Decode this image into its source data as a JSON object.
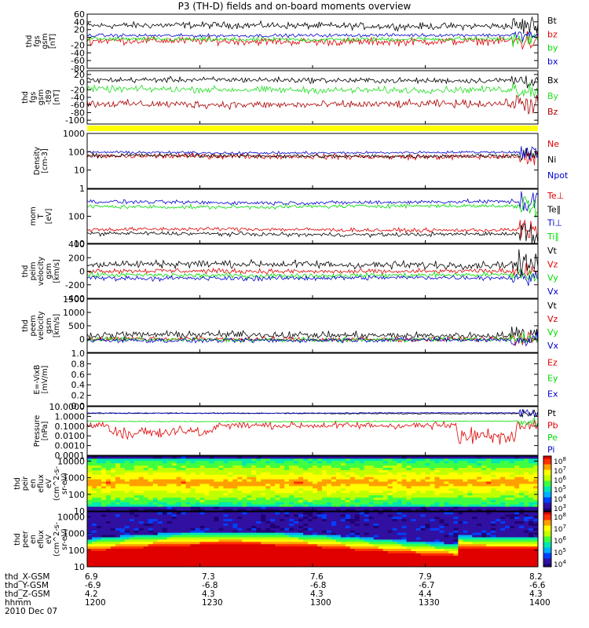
{
  "title": "P3 (TH-D) fields and on-board moments overview",
  "date": "2010 Dec 07",
  "footer": {
    "rows": [
      {
        "label": "thd_X-GSM",
        "values": [
          "6.9",
          "7.3",
          "7.6",
          "7.9",
          "8.2"
        ]
      },
      {
        "label": "thd_Y-GSM",
        "values": [
          "-6.9",
          "-6.8",
          "-6.8",
          "-6.7",
          "-6.6"
        ]
      },
      {
        "label": "thd_Z-GSM",
        "values": [
          "4.2",
          "4.3",
          "4.3",
          "4.4",
          "4.3"
        ]
      },
      {
        "label": "hhmm",
        "values": [
          "1200",
          "1230",
          "1300",
          "1330",
          "1400"
        ]
      }
    ]
  },
  "chart_data": [
    {
      "type": "line",
      "id": "fgs",
      "ylabel": [
        "thd",
        "fgs",
        "gsm",
        "[nT]"
      ],
      "ylim": [
        -80,
        60
      ],
      "log": false,
      "ticks": [
        "60",
        "40",
        "20",
        "0",
        "-20",
        "-40",
        "-60",
        "-80"
      ],
      "tick_values": [
        60,
        40,
        20,
        0,
        -20,
        -40,
        -60,
        -80
      ],
      "series": [
        {
          "name": "Bt",
          "color": "#000000",
          "level": 30,
          "noise": 6
        },
        {
          "name": "bz",
          "color": "#dd0000",
          "level": -10,
          "noise": 7
        },
        {
          "name": "by",
          "color": "#00dd00",
          "level": -5,
          "noise": 4
        },
        {
          "name": "bx",
          "color": "#0000cc",
          "level": 5,
          "noise": 3
        }
      ]
    },
    {
      "type": "line",
      "id": "t89",
      "ylabel": [
        "thd",
        "fgs",
        "gsm",
        "-t89",
        "[nT]"
      ],
      "ylim": [
        -110,
        30
      ],
      "log": false,
      "ticks": [
        "20",
        "0",
        "-20",
        "-40",
        "-60",
        "-80",
        "-100"
      ],
      "tick_values": [
        20,
        0,
        -20,
        -40,
        -60,
        -80,
        -100
      ],
      "series": [
        {
          "name": "Bx",
          "color": "#000000",
          "level": 5,
          "noise": 5
        },
        {
          "name": "By",
          "color": "#22dd22",
          "level": -20,
          "noise": 6
        },
        {
          "name": "Bz",
          "color": "#aa0000",
          "level": -58,
          "noise": 7
        }
      ]
    },
    {
      "type": "bar",
      "id": "flag",
      "color": "#ffff00"
    },
    {
      "type": "line",
      "id": "density",
      "ylabel": [
        "Density",
        "[cm-3]"
      ],
      "ylim": [
        1,
        1000
      ],
      "log": true,
      "ticks": [
        "1000",
        "100",
        "10",
        "1"
      ],
      "tick_values": [
        1000,
        100,
        10,
        1
      ],
      "series": [
        {
          "name": "Ne",
          "color": "#dd0000",
          "level": 55,
          "noise": 0.1
        },
        {
          "name": "Ni",
          "color": "#000000",
          "level": 60,
          "noise": 0.08
        },
        {
          "name": "Npot",
          "color": "#0000cc",
          "level": 90,
          "noise": 0.05
        }
      ]
    },
    {
      "type": "line",
      "id": "temp",
      "ylabel": [
        "mom",
        "T",
        "[eV]"
      ],
      "ylim": [
        10,
        1000
      ],
      "log": true,
      "ticks": [
        "100",
        "10"
      ],
      "tick_values": [
        100,
        10
      ],
      "series": [
        {
          "name": "Te⊥",
          "color": "#dd0000",
          "level": 32,
          "noise": 0.05
        },
        {
          "name": "Te∥",
          "color": "#000000",
          "level": 22,
          "noise": 0.05
        },
        {
          "name": "Ti⊥",
          "color": "#0000cc",
          "level": 330,
          "noise": 0.05
        },
        {
          "name": "Ti∥",
          "color": "#00dd00",
          "level": 230,
          "noise": 0.05
        }
      ]
    },
    {
      "type": "line",
      "id": "peiv",
      "ylabel": [
        "thd",
        "peim",
        "velocity",
        "gsm",
        "[km/s]"
      ],
      "ylim": [
        -400,
        400
      ],
      "log": false,
      "ticks": [
        "400",
        "200",
        "0",
        "-200",
        "-400"
      ],
      "tick_values": [
        400,
        200,
        0,
        -200,
        -400
      ],
      "series": [
        {
          "name": "Vt",
          "color": "#000000",
          "level": 100,
          "noise": 40
        },
        {
          "name": "Vz",
          "color": "#dd0000",
          "level": 0,
          "noise": 25
        },
        {
          "name": "Vy",
          "color": "#00dd00",
          "level": -60,
          "noise": 25
        },
        {
          "name": "Vx",
          "color": "#0000cc",
          "level": -100,
          "noise": 25
        }
      ]
    },
    {
      "type": "line",
      "id": "peev",
      "ylabel": [
        "thd",
        "peem",
        "velocity",
        "gsm",
        "[km/s]"
      ],
      "ylim": [
        -500,
        1500
      ],
      "log": false,
      "ticks": [
        "1500",
        "1000",
        "500",
        "0"
      ],
      "tick_values": [
        1500,
        1000,
        500,
        0
      ],
      "series": [
        {
          "name": "Vt",
          "color": "#000000",
          "level": 150,
          "noise": 90
        },
        {
          "name": "Vz",
          "color": "#dd0000",
          "level": 0,
          "noise": 60
        },
        {
          "name": "Vy",
          "color": "#00dd00",
          "level": -20,
          "noise": 60
        },
        {
          "name": "Vx",
          "color": "#0000cc",
          "level": -40,
          "noise": 60
        }
      ]
    },
    {
      "type": "line",
      "id": "efield",
      "ylabel": [
        "E=-VixB",
        "[mV/m]"
      ],
      "ylim": [
        0,
        1
      ],
      "log": false,
      "ticks": [
        "1.0",
        "0.8",
        "0.6",
        "0.4",
        "0.2",
        "0.0"
      ],
      "tick_values": [
        1.0,
        0.8,
        0.6,
        0.4,
        0.2,
        0.0
      ],
      "series": [
        {
          "name": "Ez",
          "color": "#dd0000"
        },
        {
          "name": "Ey",
          "color": "#00dd00"
        },
        {
          "name": "Ex",
          "color": "#0000cc"
        }
      ]
    },
    {
      "type": "line",
      "id": "pressure",
      "ylabel": [
        "Pressure",
        "[nPa]"
      ],
      "ylim": [
        0.0001,
        10
      ],
      "log": true,
      "ticks": [
        "10.0000",
        "1.0000",
        "0.1000",
        "0.0100",
        "0.0010",
        "0.0001"
      ],
      "tick_values": [
        10,
        1,
        0.1,
        0.01,
        0.001,
        0.0001
      ],
      "series": [
        {
          "name": "Pt",
          "color": "#000000",
          "level": 2.0,
          "noise": 0.04
        },
        {
          "name": "Pb",
          "color": "#dd0000",
          "level": 0.12,
          "noise": 0.25
        },
        {
          "name": "Pe",
          "color": "#00dd00",
          "level": 0.3,
          "noise": 0.03
        },
        {
          "name": "Pi",
          "color": "#0000cc",
          "level": 2.2,
          "noise": 0.03
        }
      ]
    },
    {
      "type": "heatmap",
      "id": "peir",
      "ylabel": [
        "thd",
        "peir",
        "en",
        "eflux",
        "eV",
        "(cm^2-s-",
        "sr-eV)"
      ],
      "ylim": [
        10,
        20000
      ],
      "log": true,
      "ticks": [
        "10000",
        "1000",
        "100",
        "10"
      ],
      "tick_values": [
        10000,
        1000,
        100,
        10
      ],
      "colorbar": {
        "ticks": [
          "10^8",
          "10^7",
          "10^6",
          "10^5",
          "10^4",
          "10^3"
        ]
      }
    },
    {
      "type": "heatmap",
      "id": "peer",
      "ylabel": [
        "thd",
        "peer",
        "en",
        "eflux",
        "eV",
        "(cm^2-s-",
        "sr-eV)"
      ],
      "ylim": [
        10,
        20000
      ],
      "log": true,
      "ticks": [
        "10000",
        "1000",
        "100",
        "10"
      ],
      "tick_values": [
        10000,
        1000,
        100,
        10
      ],
      "colorbar": {
        "ticks": [
          "10^8",
          "10^7",
          "10^6",
          "10^5",
          "10^4"
        ]
      }
    }
  ]
}
